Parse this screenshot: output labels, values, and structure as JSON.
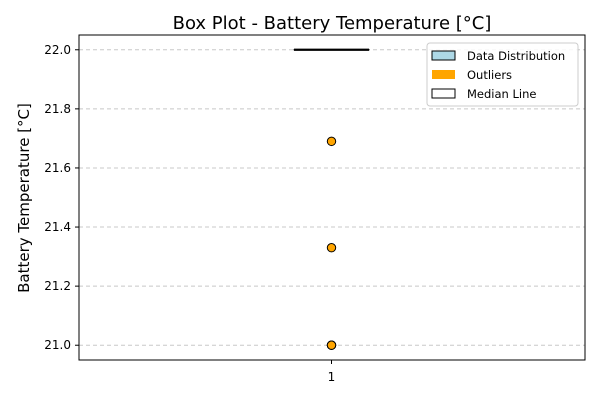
{
  "chart_data": {
    "type": "box",
    "title": "Box Plot - Battery Temperature [°C]",
    "xlabel": "",
    "ylabel": "Battery Temperature [°C]",
    "categories": [
      "1"
    ],
    "ylim": [
      20.95,
      22.05
    ],
    "yticks": [
      21.0,
      21.2,
      21.4,
      21.6,
      21.8,
      22.0
    ],
    "ytick_labels": [
      "21.0",
      "21.2",
      "21.4",
      "21.6",
      "21.8",
      "22.0"
    ],
    "grid": "y-dashed",
    "box": {
      "category": "1",
      "q1": 22.0,
      "median": 22.0,
      "q3": 22.0,
      "whisker_low": 22.0,
      "whisker_high": 22.0
    },
    "outliers": [
      21.69,
      21.33,
      21.0,
      21.0,
      21.0
    ],
    "legend": {
      "placement": "top-right",
      "entries": [
        {
          "label": "Data Distribution",
          "color": "#add8e6",
          "kind": "patch"
        },
        {
          "label": "Outliers",
          "color": "#ffa500",
          "kind": "patch"
        },
        {
          "label": "Median Line",
          "color": "#ffffff",
          "kind": "patch"
        }
      ]
    },
    "colors": {
      "box_fill": "#add8e6",
      "outlier": "#ffa500",
      "median": "#000000",
      "grid": "#c8c8c8"
    }
  }
}
